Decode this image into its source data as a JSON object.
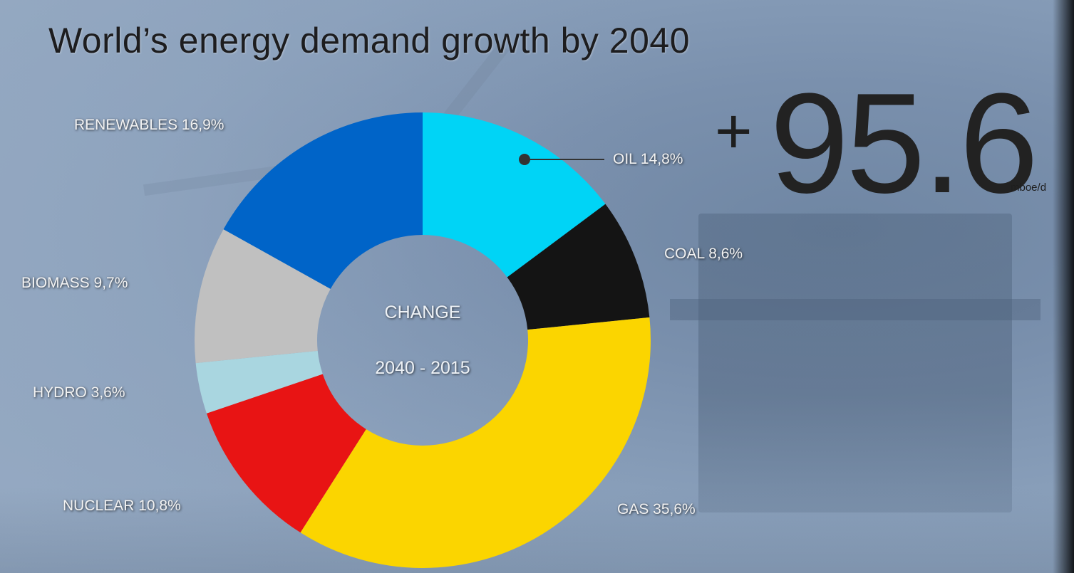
{
  "title": "World’s energy demand growth by 2040",
  "headline": {
    "sign": "+",
    "value": "95.6",
    "unit": "mboe/d"
  },
  "chart_data": {
    "type": "pie",
    "title": "World’s energy demand growth by 2040",
    "center_line1": "CHANGE",
    "center_line2": "2040 - 2015",
    "slices": [
      {
        "name": "OIL",
        "value": 14.8,
        "label": "OIL 14,8%",
        "color": "#00d4f6"
      },
      {
        "name": "COAL",
        "value": 8.6,
        "label": "COAL  8,6%",
        "color": "#141414"
      },
      {
        "name": "GAS",
        "value": 35.6,
        "label": "GAS  35,6%",
        "color": "#fbd500"
      },
      {
        "name": "NUCLEAR",
        "value": 10.8,
        "label": "NUCLEAR  10,8%",
        "color": "#e81414"
      },
      {
        "name": "HYDRO",
        "value": 3.6,
        "label": "HYDRO  3,6%",
        "color": "#a9d6e0"
      },
      {
        "name": "BIOMASS",
        "value": 9.7,
        "label": "BIOMASS  9,7%",
        "color": "#c0c0c0"
      },
      {
        "name": "RENEWABLES",
        "value": 16.9,
        "label": "RENEWABLES 16,9%",
        "color": "#0064c8"
      }
    ]
  }
}
